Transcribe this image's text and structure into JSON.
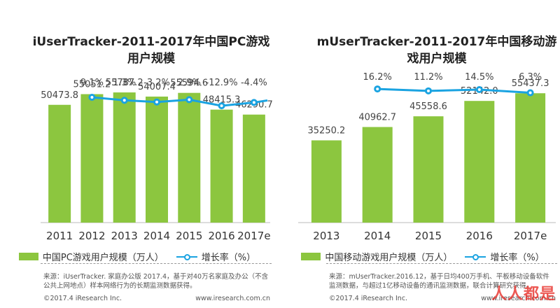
{
  "chart_data": [
    {
      "type": "bar",
      "title": "iUserTracker-2011-2017年中国PC游戏用户规模",
      "title_lines": [
        "iUserTracker-2011-2017年中国PC游戏",
        "用户规模"
      ],
      "categories": [
        "2011",
        "2012",
        "2013",
        "2014",
        "2015",
        "2016",
        "2017e"
      ],
      "series": [
        {
          "name": "中国PC游戏用户规模（万人）",
          "type": "bar",
          "values": [
            50473.8,
            55051.2,
            55787.2,
            54007.4,
            55594.6,
            48415.3,
            46290.7
          ],
          "labels": [
            "50473.8",
            "55051.2",
            "55787.2",
            "54007.4",
            "55594.6",
            "48415.3",
            "46290.7"
          ]
        },
        {
          "name": "增长率（%）",
          "type": "line",
          "values": [
            null,
            9.1,
            1.3,
            -3.2,
            2.9,
            -12.9,
            -4.4
          ],
          "labels": [
            "",
            "9.1%",
            "1.3%",
            "-3.2%",
            "2.9%",
            "-12.9%",
            "-4.4%"
          ]
        }
      ],
      "ylim": [
        0,
        60000
      ],
      "legend_position": "bottom",
      "colors": {
        "bar": "#8cc63f",
        "line": "#1aa3e1"
      },
      "source": "来源：iUserTracker. 家庭办公版 2017.4，基于对40万名家庭及办公（不含公共上网地点）样本网络行为的长期监测数据获得。",
      "copyright": "©2017.4 iResearch Inc.",
      "website": "www.iresearch.com.cn"
    },
    {
      "type": "bar",
      "title": "mUserTracker-2011-2017年中国移动游戏用户规模",
      "title_lines": [
        "mUserTracker-2011-2017年中国移动游",
        "戏用户规模"
      ],
      "categories": [
        "2013",
        "2014",
        "2015",
        "2016",
        "2017e"
      ],
      "series": [
        {
          "name": "中国移动游戏用户规模（万人）",
          "type": "bar",
          "values": [
            35250.2,
            40962.7,
            45558.6,
            52142.0,
            55437.3
          ],
          "labels": [
            "35250.2",
            "40962.7",
            "45558.6",
            "52142.0",
            "55437.3"
          ]
        },
        {
          "name": "增长率（%）",
          "type": "line",
          "values": [
            null,
            16.2,
            11.2,
            14.5,
            6.3
          ],
          "labels": [
            "",
            "16.2%",
            "11.2%",
            "14.5%",
            "6.3%"
          ]
        }
      ],
      "ylim": [
        0,
        60000
      ],
      "legend_position": "bottom",
      "colors": {
        "bar": "#8cc63f",
        "line": "#1aa3e1"
      },
      "source": "来源：mUserTracker.2016.12，基于日均400万手机、平板移动设备软件监测数据，与超过1亿移动设备的通讯监测数据，联合计算研究获得。",
      "copyright": "©2017.4 iResearch Inc.",
      "website": "www.iresearch.com.cn"
    }
  ],
  "watermark": "人人都是"
}
